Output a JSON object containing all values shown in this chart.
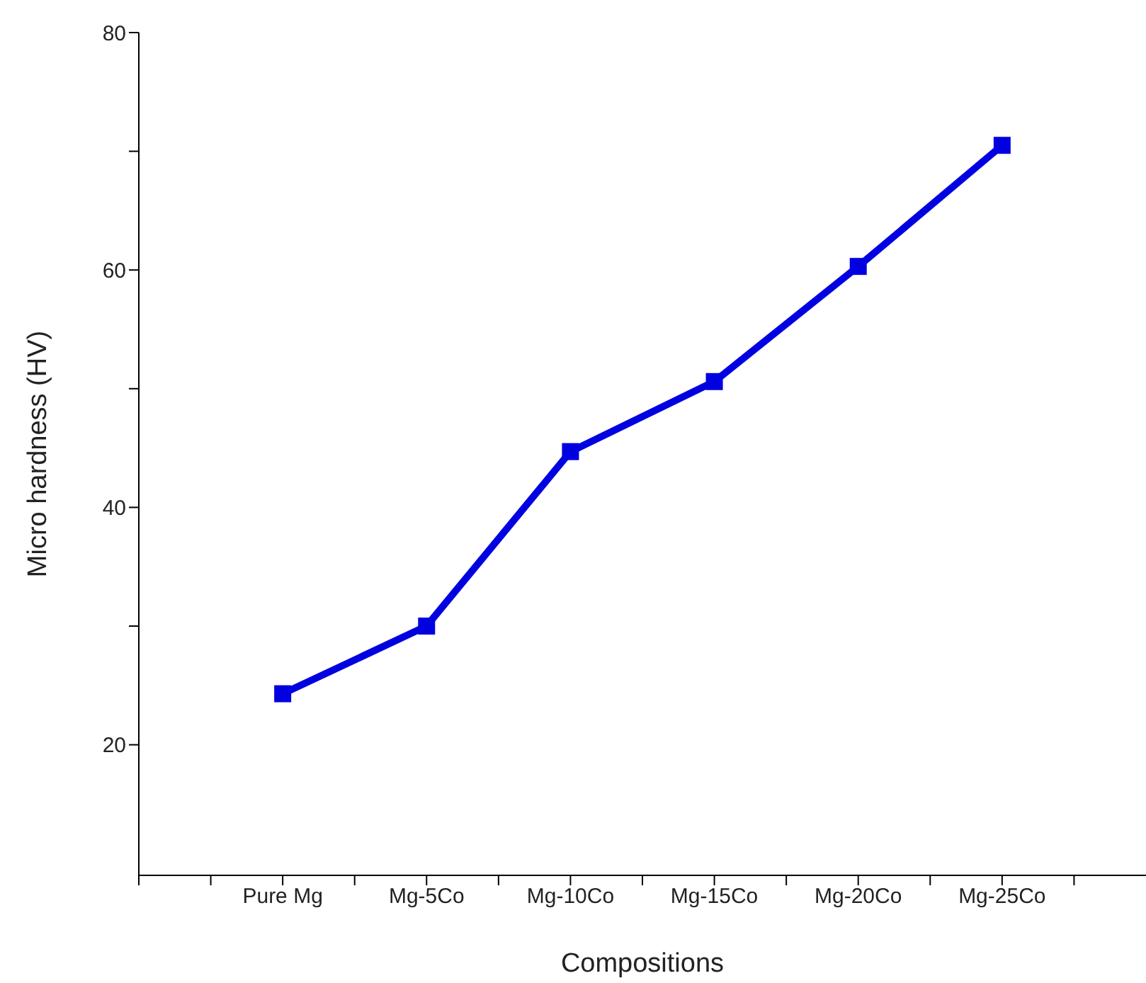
{
  "chart_data": {
    "type": "line",
    "xlabel": "Compositions",
    "ylabel": "Micro hardness (HV)",
    "categories": [
      "Pure Mg",
      "Mg-5Co",
      "Mg-10Co",
      "Mg-15Co",
      "Mg-20Co",
      "Mg-25Co"
    ],
    "series": [
      {
        "color": "#0000e0",
        "values": [
          24.3,
          30.0,
          44.7,
          50.6,
          60.3,
          70.5
        ]
      }
    ],
    "ylim": [
      9,
      80
    ],
    "yticks": [
      20,
      {
        "value": 30,
        "label": null
      },
      40,
      {
        "value": 50,
        "label": null
      },
      60,
      {
        "value": 70,
        "label": null
      },
      80
    ],
    "marker": "square",
    "line_style": "solid",
    "grid": false,
    "legend": false
  }
}
